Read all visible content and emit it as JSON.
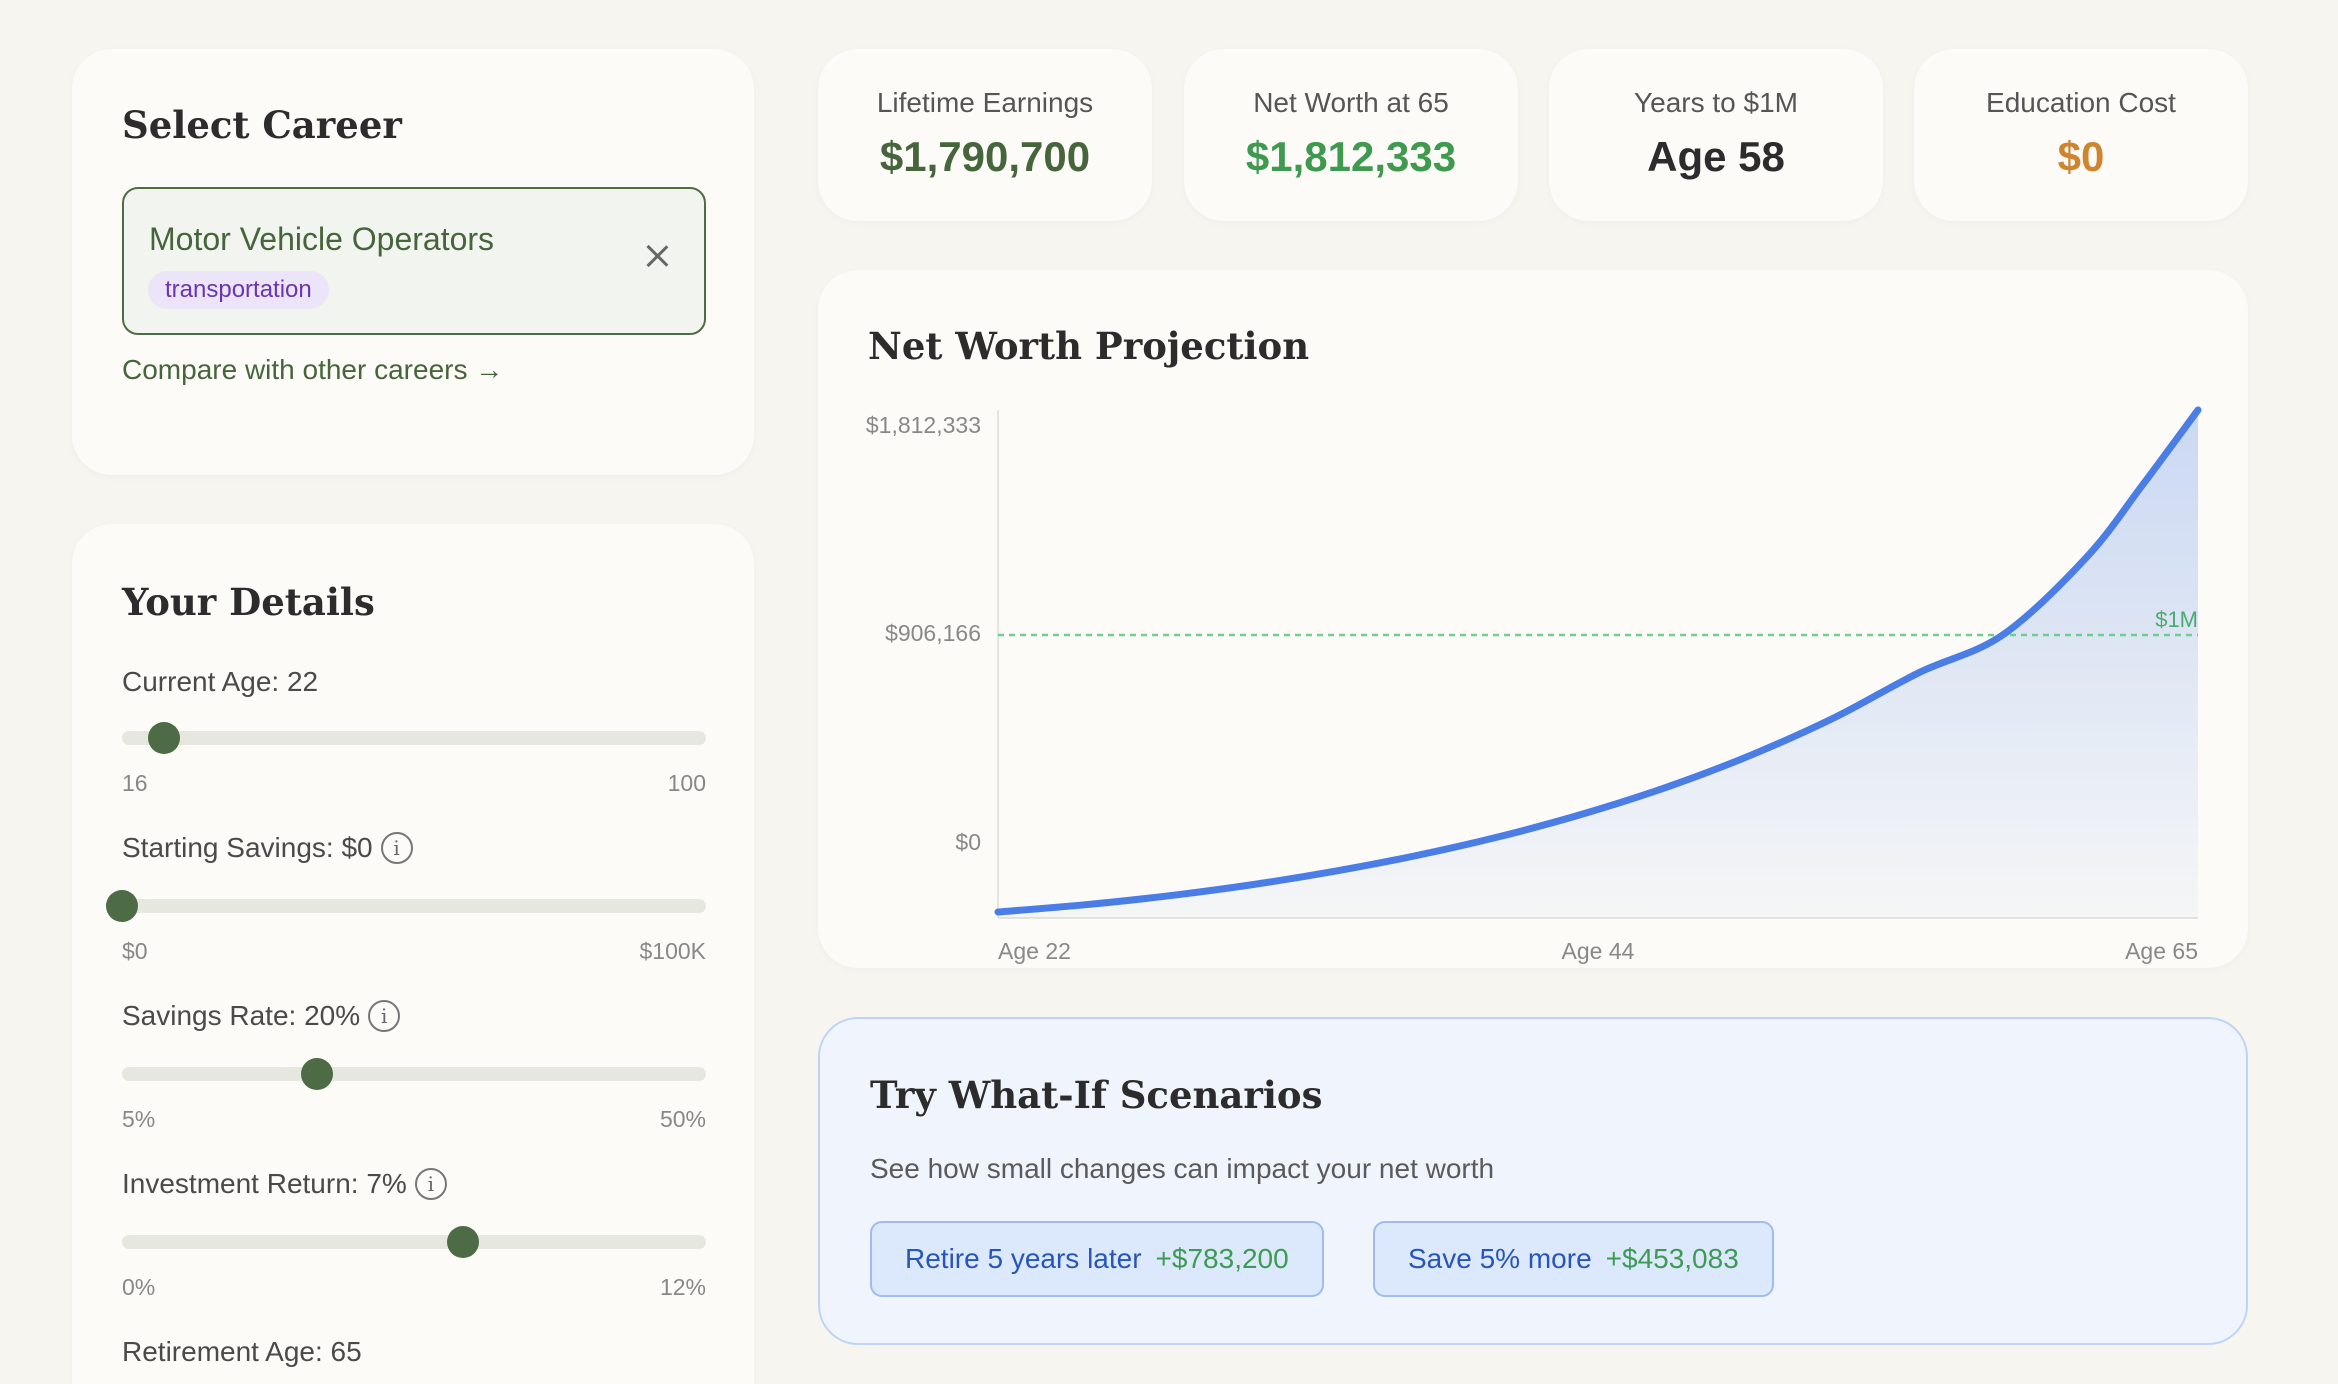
{
  "career": {
    "heading": "Select Career",
    "name": "Motor Vehicle Operators",
    "tag": "transportation",
    "compare_link": "Compare with other careers →"
  },
  "details": {
    "heading": "Your Details",
    "fields": [
      {
        "label": "Current Age: 22",
        "info": false,
        "min": "16",
        "max": "100",
        "value": 22,
        "range": [
          16,
          100
        ]
      },
      {
        "label": "Starting Savings: $0",
        "info": true,
        "min": "$0",
        "max": "$100K",
        "value": 0,
        "range": [
          0,
          100000
        ]
      },
      {
        "label": "Savings Rate: 20%",
        "info": true,
        "min": "5%",
        "max": "50%",
        "value": 20,
        "range": [
          5,
          50
        ]
      },
      {
        "label": "Investment Return: 7%",
        "info": true,
        "min": "0%",
        "max": "12%",
        "value": 7,
        "range": [
          0,
          12
        ]
      },
      {
        "label": "Retirement Age: 65",
        "info": false
      }
    ]
  },
  "stats": [
    {
      "label": "Lifetime Earnings",
      "value": "$1,790,700",
      "color": "#47653c"
    },
    {
      "label": "Net Worth at 65",
      "value": "$1,812,333",
      "color": "#3f9a50"
    },
    {
      "label": "Years to $1M",
      "value": "Age 58",
      "color": "#2c2c2c"
    },
    {
      "label": "Education Cost",
      "value": "$0",
      "color": "#cf8430"
    }
  ],
  "chart": {
    "heading": "Net Worth Projection",
    "reference_label": "$1M"
  },
  "chart_data": {
    "type": "area",
    "title": "Net Worth Projection",
    "x_tick_labels": [
      "Age 22",
      "Age 44",
      "Age 65"
    ],
    "y_tick_labels": [
      "$1,812,333",
      "$906,166",
      "$0"
    ],
    "ylim": [
      0,
      1812333
    ],
    "xlim": [
      22,
      65
    ],
    "x": [
      22,
      25,
      28,
      31,
      34,
      37,
      40,
      43,
      46,
      49,
      52,
      55,
      58,
      61,
      63,
      65
    ],
    "y": [
      0,
      25000,
      57000,
      97000,
      146000,
      204000,
      273000,
      355000,
      452000,
      567000,
      703000,
      864000,
      1000000,
      1280000,
      1540000,
      1812333
    ],
    "reference_line": {
      "value": 1000000,
      "label": "$1M",
      "style": "dashed",
      "color": "#6fcf8f"
    },
    "line_color": "#4a7ee6",
    "grid": false
  },
  "whatif": {
    "heading": "Try What-If Scenarios",
    "subtitle": "See how small changes can impact your net worth",
    "scenarios": [
      {
        "label": "Retire 5 years later",
        "gain": "+$783,200"
      },
      {
        "label": "Save 5% more",
        "gain": "+$453,083"
      }
    ]
  }
}
